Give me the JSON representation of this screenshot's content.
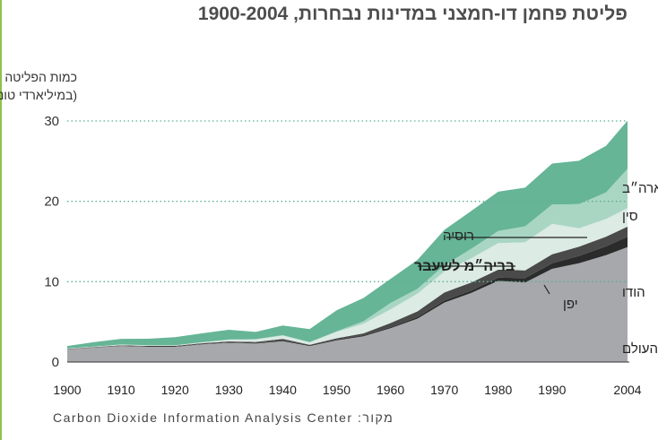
{
  "title": "פליטת פחמן דו-חמצני במדינות נבחרות, 1900-2004",
  "source": {
    "label": "מקור:",
    "text": "Carbon Dioxide Information Analysis Center"
  },
  "chart_data": {
    "type": "area",
    "title": "פליטת פחמן דו-חמצני במדינות נבחרות, 1900-2004",
    "ylabel_lines": [
      "כמות הפליטה",
      "(במיליארדי טונות)"
    ],
    "xlabel": "",
    "xlim": [
      1900,
      2004
    ],
    "ylim": [
      0,
      30
    ],
    "x_ticks": [
      1900,
      1910,
      1920,
      1930,
      1940,
      1950,
      1960,
      1970,
      1980,
      1990,
      2004
    ],
    "y_ticks": [
      0,
      10,
      20,
      30
    ],
    "grid": "dotted horizontal at 10, 20, 30",
    "x": [
      1900,
      1905,
      1910,
      1915,
      1920,
      1925,
      1930,
      1935,
      1940,
      1945,
      1950,
      1955,
      1960,
      1965,
      1970,
      1975,
      1980,
      1985,
      1990,
      1995,
      2000,
      2004
    ],
    "series": [
      {
        "name": "שאר העולם",
        "color": "#a6a8ab",
        "values": [
          1.6,
          1.8,
          2.0,
          1.9,
          1.9,
          2.2,
          2.4,
          2.3,
          2.6,
          2.0,
          2.7,
          3.2,
          4.2,
          5.4,
          7.4,
          8.6,
          10.1,
          9.9,
          11.6,
          12.3,
          13.3,
          14.3
        ]
      },
      {
        "name": "הודו",
        "color": "#2b2b2b",
        "values": [
          0.02,
          0.03,
          0.04,
          0.05,
          0.05,
          0.06,
          0.07,
          0.08,
          0.09,
          0.1,
          0.1,
          0.12,
          0.15,
          0.2,
          0.25,
          0.3,
          0.4,
          0.55,
          0.7,
          0.9,
          1.1,
          1.3
        ]
      },
      {
        "name": "יפן",
        "color": "#4a4a4a",
        "values": [
          0.02,
          0.03,
          0.05,
          0.06,
          0.07,
          0.08,
          0.1,
          0.12,
          0.2,
          0.05,
          0.15,
          0.25,
          0.5,
          0.7,
          1.0,
          1.0,
          1.0,
          0.95,
          1.1,
          1.15,
          1.2,
          1.25
        ]
      },
      {
        "name": "בריה״מ לשעבר",
        "color": "#dcebe4",
        "values": [
          0.05,
          0.06,
          0.08,
          0.07,
          0.05,
          0.1,
          0.2,
          0.3,
          0.4,
          0.3,
          0.8,
          1.2,
          1.7,
          2.2,
          2.6,
          3.0,
          3.3,
          3.5,
          3.8,
          2.3,
          2.2,
          2.3
        ]
      },
      {
        "name": "רוסיה",
        "color": "#8fc9b0",
        "values": [
          0,
          0,
          0,
          0,
          0,
          0,
          0,
          0,
          0,
          0,
          0,
          0,
          0,
          0,
          0,
          0,
          0,
          0,
          0,
          0,
          0,
          0
        ]
      },
      {
        "name": "סין",
        "color": "#a9d6c3",
        "values": [
          0.01,
          0.01,
          0.02,
          0.02,
          0.02,
          0.03,
          0.04,
          0.05,
          0.06,
          0.04,
          0.08,
          0.3,
          0.8,
          0.6,
          0.8,
          1.2,
          1.5,
          2.0,
          2.4,
          3.0,
          3.3,
          4.9
        ]
      },
      {
        "name": "ארה״ב",
        "color": "#66b596",
        "values": [
          0.3,
          0.55,
          0.7,
          0.8,
          1.0,
          1.1,
          1.2,
          0.9,
          1.2,
          1.6,
          2.6,
          2.9,
          3.0,
          3.6,
          4.4,
          4.7,
          4.9,
          4.8,
          5.1,
          5.4,
          5.8,
          6.0
        ]
      }
    ],
    "labels": [
      "שאר העולם",
      "הודו",
      "יפן",
      "בריה״מ לשעבר",
      "רוסיה",
      "סין",
      "ארה״ב"
    ]
  }
}
